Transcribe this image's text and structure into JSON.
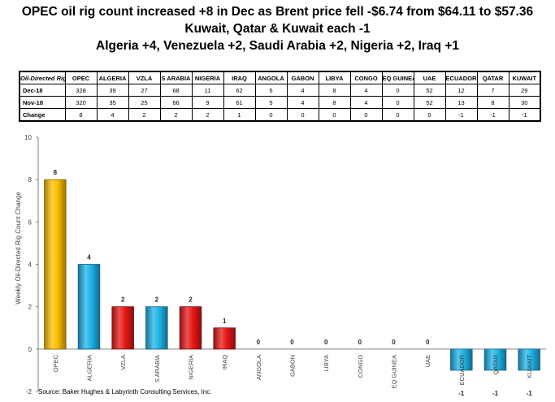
{
  "titles": {
    "line1": "OPEC oil rig count increased +8 in Dec as Brent price fell -$6.74 from $64.11 to $57.36",
    "line2": "Kuwait, Qatar & Kuwait each -1",
    "line3": "Algeria +4, Venezuela +2, Saudi Arabia +2, Nigeria +2, Iraq +1"
  },
  "table": {
    "corner": "Oil-Directed Rigs",
    "columns": [
      "OPEC",
      "ALGERIA",
      "VZLA",
      "S ARABIA",
      "NIGERIA",
      "IRAQ",
      "ANGOLA",
      "GABON",
      "LIBYA",
      "CONGO",
      "EQ GUINEA",
      "UAE",
      "ECUADOR",
      "QATAR",
      "KUWAIT"
    ],
    "rows": [
      {
        "label": "Dec-18",
        "values": [
          "328",
          "39",
          "27",
          "68",
          "11",
          "62",
          "5",
          "4",
          "8",
          "4",
          "0",
          "52",
          "12",
          "7",
          "29"
        ]
      },
      {
        "label": "Nov-18",
        "values": [
          "320",
          "35",
          "25",
          "66",
          "9",
          "61",
          "5",
          "4",
          "8",
          "4",
          "0",
          "52",
          "13",
          "8",
          "30"
        ]
      },
      {
        "label": "Change",
        "values": [
          "8",
          "4",
          "2",
          "2",
          "2",
          "1",
          "0",
          "0",
          "0",
          "0",
          "0",
          "0",
          "-1",
          "-1",
          "-1"
        ]
      }
    ]
  },
  "chart_data": {
    "type": "bar",
    "categories": [
      "OPEC",
      "ALGERIA",
      "VZLA",
      "S ARABIA",
      "NIGERIA",
      "IRAQ",
      "ANGOLA",
      "GABON",
      "LIBYA",
      "CONGO",
      "EQ GUINEA",
      "UAE",
      "ECUADOR",
      "QATAR",
      "KUWAIT"
    ],
    "values": [
      8,
      4,
      2,
      2,
      2,
      1,
      0,
      0,
      0,
      0,
      0,
      0,
      -1,
      -1,
      -1
    ],
    "data_labels": [
      "8",
      "4",
      "2",
      "2",
      "2",
      "1",
      "0",
      "0",
      "0",
      "0",
      "0",
      "0",
      "-1",
      "-1",
      "-1"
    ],
    "colors": [
      "#FFC000",
      "#1FB4E8",
      "#E81818",
      "#1FB4E8",
      "#E81818",
      "#E81818",
      "#E81818",
      "#E81818",
      "#E81818",
      "#E81818",
      "#E81818",
      "#E81818",
      "#1FB4E8",
      "#1FB4E8",
      "#1FB4E8"
    ],
    "ylabel": "Weekly Oil-Directed Rig Count Change",
    "ylim": [
      -2,
      10
    ],
    "yticks": [
      "-2",
      "0",
      "2",
      "4",
      "6",
      "8",
      "10"
    ],
    "grid": false
  },
  "source": "Source:  Baker Hughes & Labyrinth Consulting Services, Inc."
}
